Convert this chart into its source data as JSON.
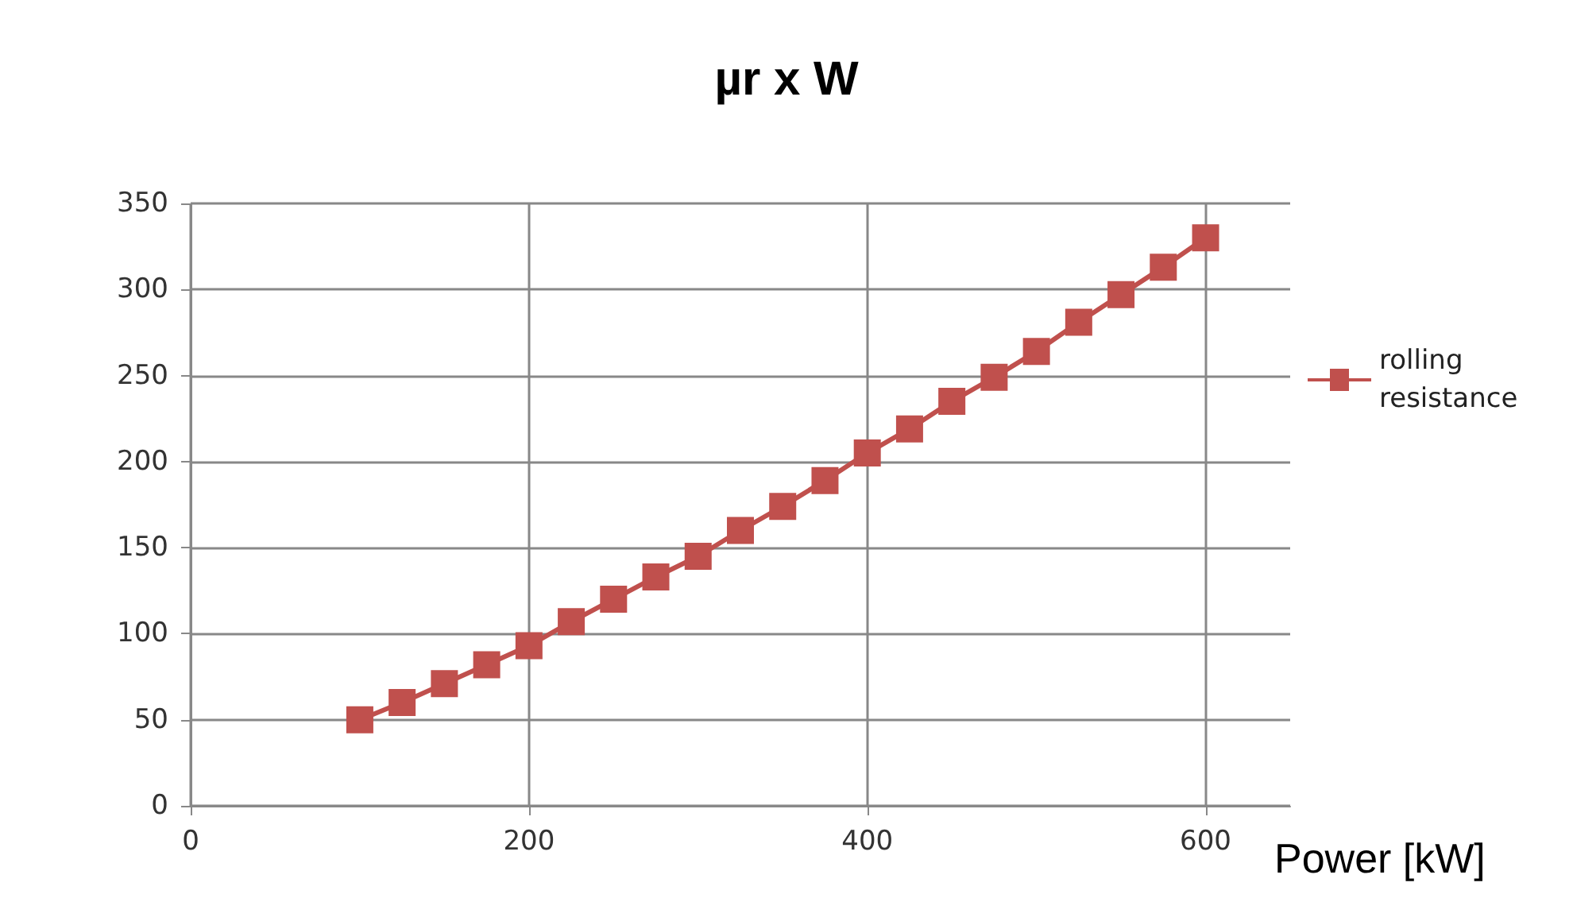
{
  "chart_data": {
    "type": "line",
    "title": "µr x W",
    "xlabel": "Power [kW]",
    "x": [
      100,
      125,
      150,
      175,
      200,
      225,
      250,
      275,
      300,
      325,
      350,
      375,
      400,
      425,
      450,
      475,
      500,
      525,
      550,
      575,
      600
    ],
    "series": [
      {
        "name": "rolling resistance",
        "color": "#c0504d",
        "values": [
          50,
          60,
          71,
          82,
          93,
          107,
          120,
          133,
          145,
          160,
          174,
          189,
          205,
          219,
          235,
          249,
          264,
          281,
          297,
          313,
          330
        ]
      }
    ],
    "xlim": [
      0,
      650
    ],
    "xticks": [
      0,
      200,
      400,
      600
    ],
    "ylim": [
      0,
      350
    ],
    "yticks": [
      0,
      50,
      100,
      150,
      200,
      250,
      300,
      350
    ],
    "grid": true,
    "legend": "right",
    "marker": "square",
    "line_style": "solid"
  }
}
